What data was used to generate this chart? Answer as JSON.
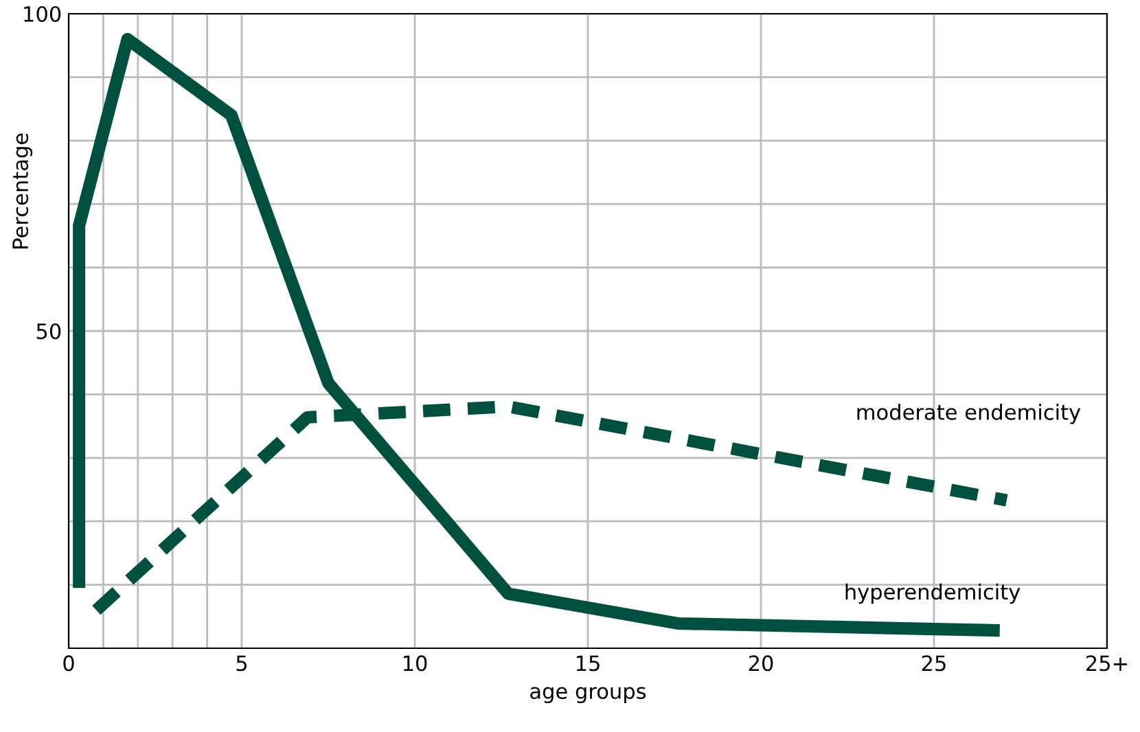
{
  "chart_data": {
    "type": "line",
    "xlabel": "age groups",
    "ylabel": "Percentage",
    "xlim": [
      0,
      30
    ],
    "xticks": [
      0,
      {
        "value": 1,
        "label": null
      },
      {
        "value": 2,
        "label": null
      },
      {
        "value": 3,
        "label": null
      },
      {
        "value": 4,
        "label": null
      },
      5,
      10,
      15,
      20,
      25,
      {
        "value": 30,
        "label": "25+"
      }
    ],
    "ylim": [
      0,
      100
    ],
    "yticks": [
      {
        "value": 10,
        "label": null
      },
      {
        "value": 20,
        "label": null
      },
      {
        "value": 30,
        "label": null
      },
      {
        "value": 40,
        "label": null
      },
      50,
      {
        "value": 60,
        "label": null
      },
      {
        "value": 70,
        "label": null
      },
      {
        "value": 80,
        "label": null
      },
      {
        "value": 90,
        "label": null
      },
      100
    ],
    "grid": true,
    "marker": "none",
    "series": [
      {
        "name": "hyperendemicity",
        "color": "#00503f",
        "line_style": "solid",
        "x": [
          0.3,
          0.3,
          1.7,
          4.7,
          7.5,
          12.7,
          17.6,
          26.9
        ],
        "values": [
          9.5,
          66.6,
          96,
          84,
          41.8,
          8.6,
          3.9,
          2.8
        ]
      },
      {
        "name": "moderate endemicity",
        "color": "#00503f",
        "line_style": "dashed",
        "x": [
          0.8,
          4.7,
          6.9,
          12.7,
          27.1
        ],
        "values": [
          6,
          25.4,
          36.4,
          38.1,
          23.3
        ]
      }
    ]
  }
}
